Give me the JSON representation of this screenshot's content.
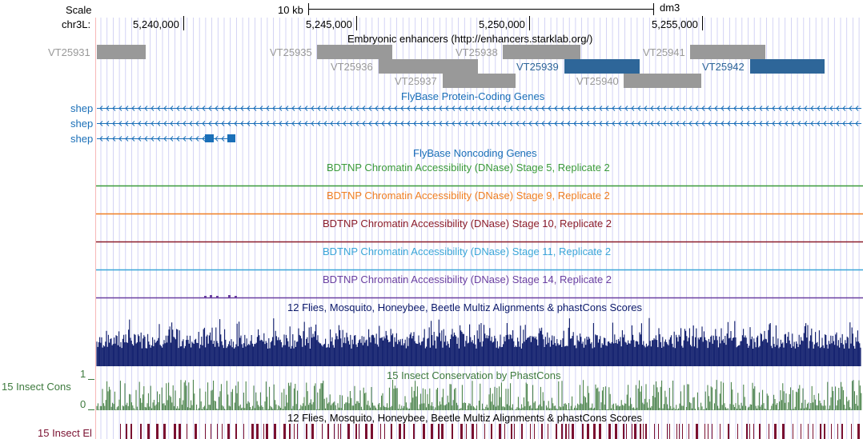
{
  "scale": {
    "label": "Scale",
    "bar_label": "10 kb",
    "assembly": "dm3"
  },
  "position": {
    "chrom_label": "chr3L:",
    "ticks": [
      "5,240,000",
      "5,245,000",
      "5,250,000",
      "5,255,000"
    ]
  },
  "tracks": {
    "enhancers": {
      "title": "Embryonic enhancers (http://enhancers.starklab.org/)",
      "items": [
        {
          "name": "VT25931",
          "highlight": false
        },
        {
          "name": "VT25935",
          "highlight": false
        },
        {
          "name": "VT25936",
          "highlight": false
        },
        {
          "name": "VT25937",
          "highlight": false
        },
        {
          "name": "VT25938",
          "highlight": false
        },
        {
          "name": "VT25939",
          "highlight": true
        },
        {
          "name": "VT25940",
          "highlight": false
        },
        {
          "name": "VT25941",
          "highlight": false
        },
        {
          "name": "VT25942",
          "highlight": true
        }
      ]
    },
    "flybase_coding": {
      "title": "FlyBase Protein-Coding Genes",
      "genes": [
        "shep",
        "shep",
        "shep"
      ]
    },
    "flybase_noncoding": {
      "title": "FlyBase Noncoding Genes"
    },
    "dnase": [
      {
        "title": "BDTNP Chromatin Accessibility (DNase) Stage 5, Replicate 2",
        "color": "#3a9a3a"
      },
      {
        "title": "BDTNP Chromatin Accessibility (DNase) Stage 9, Replicate 2",
        "color": "#f07f22"
      },
      {
        "title": "BDTNP Chromatin Accessibility (DNase) Stage 10, Replicate 2",
        "color": "#8b1c2a"
      },
      {
        "title": "BDTNP Chromatin Accessibility (DNase) Stage 11, Replicate 2",
        "color": "#3aa6d8"
      },
      {
        "title": "BDTNP Chromatin Accessibility (DNase) Stage 14, Replicate 2",
        "color": "#6a3fa0"
      }
    ],
    "multiz": {
      "title": "12 Flies, Mosquito, Honeybee, Beetle Multiz Alignments & phastCons Scores"
    },
    "insect_cons": {
      "title": "15 Insect Conservation by PhastCons",
      "side_label": "15 Insect Cons",
      "axis_max": "1",
      "axis_min": "0"
    },
    "insect_el": {
      "title": "12 Flies, Mosquito, Honeybee, Beetle Multiz Alignments & phastCons Scores",
      "side_label": "15 Insect El"
    }
  },
  "colors": {
    "enhancer_gray": "#999999",
    "enhancer_blue": "#2e6699",
    "gene_blue": "#1a6fb8",
    "multiz_navy": "#0c1a6a",
    "cons_green": "#3d7a3d",
    "el_maroon": "#7a1030",
    "grid_line": "#c9c9f2",
    "left_line": "#f7b8b8"
  }
}
